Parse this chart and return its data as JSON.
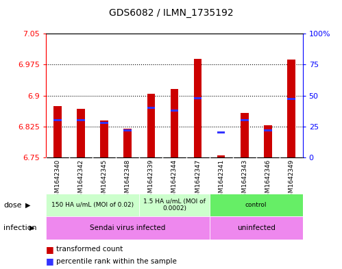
{
  "title": "GDS6082 / ILMN_1735192",
  "samples": [
    "GSM1642340",
    "GSM1642342",
    "GSM1642345",
    "GSM1642348",
    "GSM1642339",
    "GSM1642344",
    "GSM1642347",
    "GSM1642341",
    "GSM1642343",
    "GSM1642346",
    "GSM1642349"
  ],
  "transformed_counts": [
    6.875,
    6.868,
    6.84,
    6.82,
    6.905,
    6.915,
    6.988,
    6.755,
    6.858,
    6.828,
    6.987
  ],
  "percentile_ranks": [
    30,
    30,
    28,
    22,
    40,
    38,
    48,
    20,
    30,
    22,
    47
  ],
  "y_min": 6.75,
  "y_max": 7.05,
  "y_ticks": [
    6.75,
    6.825,
    6.9,
    6.975,
    7.05
  ],
  "y_right_ticks": [
    0,
    25,
    50,
    75,
    100
  ],
  "bar_color": "#cc0000",
  "percentile_color": "#3333ff",
  "dose_groups": [
    {
      "label": "150 HA u/mL (MOI of 0.02)",
      "start": 0,
      "end": 4,
      "color": "#ccffcc"
    },
    {
      "label": "1.5 HA u/mL (MOI of\n0.0002)",
      "start": 4,
      "end": 7,
      "color": "#ccffcc"
    },
    {
      "label": "control",
      "start": 7,
      "end": 11,
      "color": "#66ee66"
    }
  ],
  "infection_groups": [
    {
      "label": "Sendai virus infected",
      "start": 0,
      "end": 7,
      "color": "#ee88ee"
    },
    {
      "label": "uninfected",
      "start": 7,
      "end": 11,
      "color": "#ee88ee"
    }
  ]
}
